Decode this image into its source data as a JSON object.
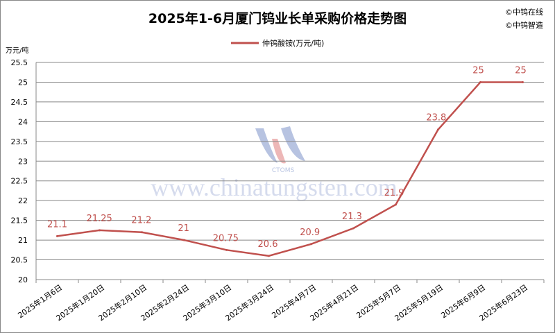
{
  "chart_data": {
    "type": "line",
    "title": "2025年1-6月厦门钨业长单采购价格走势图",
    "ylabel": "万元/吨",
    "ylim": [
      20,
      25.5
    ],
    "yticks": [
      "20",
      "20.5",
      "21",
      "21.5",
      "22",
      "22.5",
      "23",
      "23.5",
      "24",
      "24.5",
      "25",
      "25.5"
    ],
    "grid": "horizontal",
    "legend": "top",
    "categories": [
      "2025年1月6日",
      "2025年1月20日",
      "2025年2月10日",
      "2025年2月24日",
      "2025年3月10日",
      "2025年3月24日",
      "2025年4月7日",
      "2025年4月21日",
      "2025年5月7日",
      "2025年5月19日",
      "2025年6月9日",
      "2025年6月23日"
    ],
    "series": [
      {
        "name": "仲钨酸铵(万元/吨)",
        "color": "#c0504d",
        "values": [
          21.1,
          21.25,
          21.2,
          21,
          20.75,
          20.6,
          20.9,
          21.3,
          21.9,
          23.8,
          25,
          25
        ],
        "labels": [
          "21.1",
          "21.25",
          "21.2",
          "21",
          "20.75",
          "20.6",
          "20.9",
          "21.3",
          "21.9",
          "23.8",
          "25",
          "25"
        ]
      }
    ]
  },
  "copyright": [
    "©中钨在线",
    "©中钨智造"
  ],
  "watermark": {
    "logo": "CTOMS",
    "text": "www.chinatungsten.com"
  }
}
